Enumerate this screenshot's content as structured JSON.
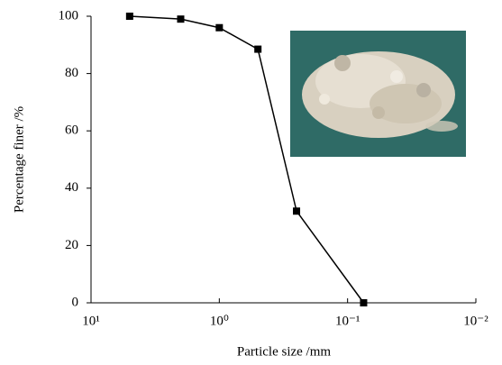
{
  "chart_data": {
    "type": "line",
    "x_label": "Particle size /mm",
    "y_label": "Percentage finer /%",
    "x": [
      5,
      2,
      1,
      0.5,
      0.25,
      0.075
    ],
    "values": [
      100,
      99,
      96,
      88.5,
      32,
      0
    ],
    "color": "#000000",
    "log_x": true,
    "xlim": [
      10,
      0.01
    ],
    "xticks": [
      {
        "value": 10,
        "label": "10¹"
      },
      {
        "value": 1,
        "label": "10⁰"
      },
      {
        "value": 0.1,
        "label": "10⁻¹"
      },
      {
        "value": 0.01,
        "label": "10⁻²"
      }
    ],
    "ylim": [
      0,
      100
    ],
    "yticks": [
      0,
      20,
      40,
      60,
      80,
      100
    ],
    "grid": false
  }
}
